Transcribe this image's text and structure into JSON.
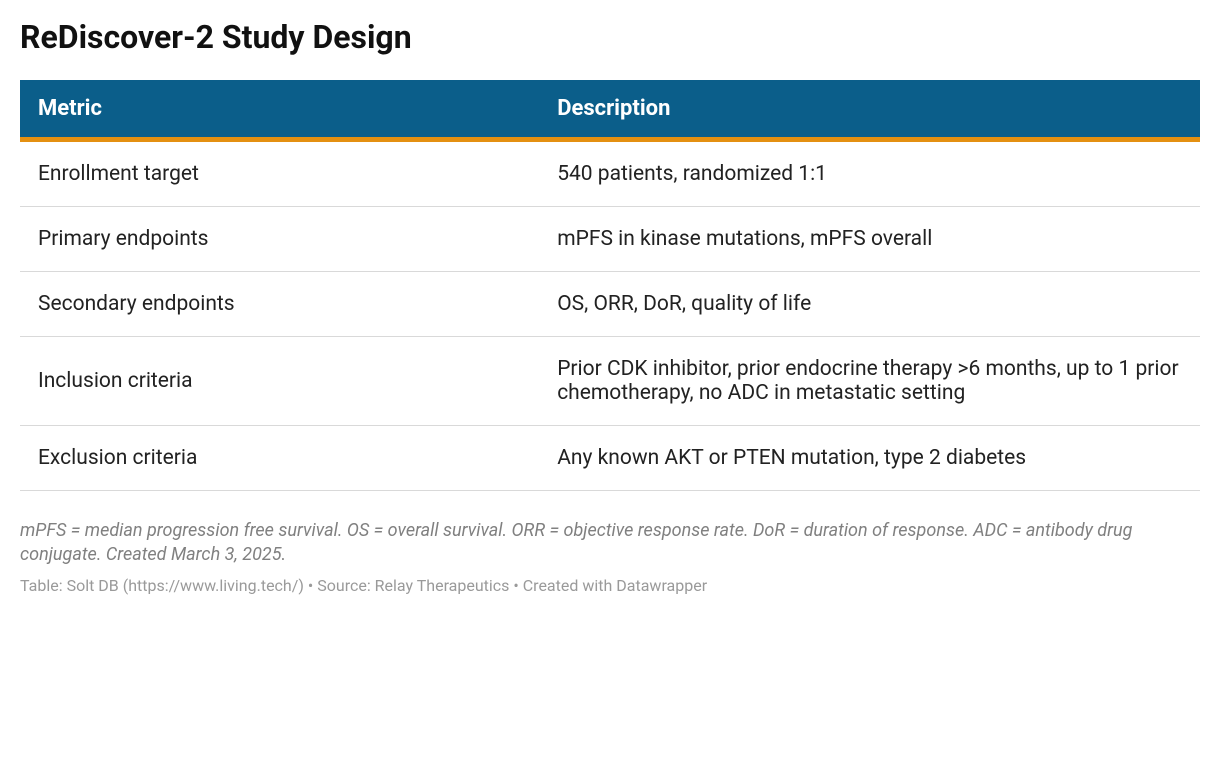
{
  "title": "ReDiscover-2 Study Design",
  "table": {
    "type": "table",
    "header_bg": "#0b5e8a",
    "header_text_color": "#ffffff",
    "accent_color": "#e49011",
    "row_border_color": "#d9d9d9",
    "background_color": "#ffffff",
    "title_fontsize": 32,
    "header_fontsize": 22,
    "cell_fontsize": 21,
    "columns": [
      "Metric",
      "Description"
    ],
    "column_widths": [
      "44%",
      "56%"
    ],
    "rows": [
      {
        "metric": "Enrollment target",
        "description": "540 patients, randomized 1:1"
      },
      {
        "metric": "Primary endpoints",
        "description": "mPFS in kinase mutations, mPFS overall"
      },
      {
        "metric": "Secondary endpoints",
        "description": "OS, ORR, DoR, quality of life"
      },
      {
        "metric": "Inclusion criteria",
        "description": "Prior CDK inhibitor, prior endocrine therapy >6 months, up to 1 prior chemotherapy, no ADC in metastatic setting"
      },
      {
        "metric": "Exclusion criteria",
        "description": "Any known AKT or PTEN mutation, type 2 diabetes"
      }
    ]
  },
  "footnote": "mPFS = median progression free survival. OS = overall survival. ORR = objective response rate. DoR = duration of response. ADC = antibody drug conjugate. Created March 3, 2025.",
  "attribution": "Table: Solt DB (https://www.living.tech/) • Source: Relay Therapeutics • Created with Datawrapper",
  "footnote_color": "#808080",
  "attribution_color": "#9a9a9a"
}
